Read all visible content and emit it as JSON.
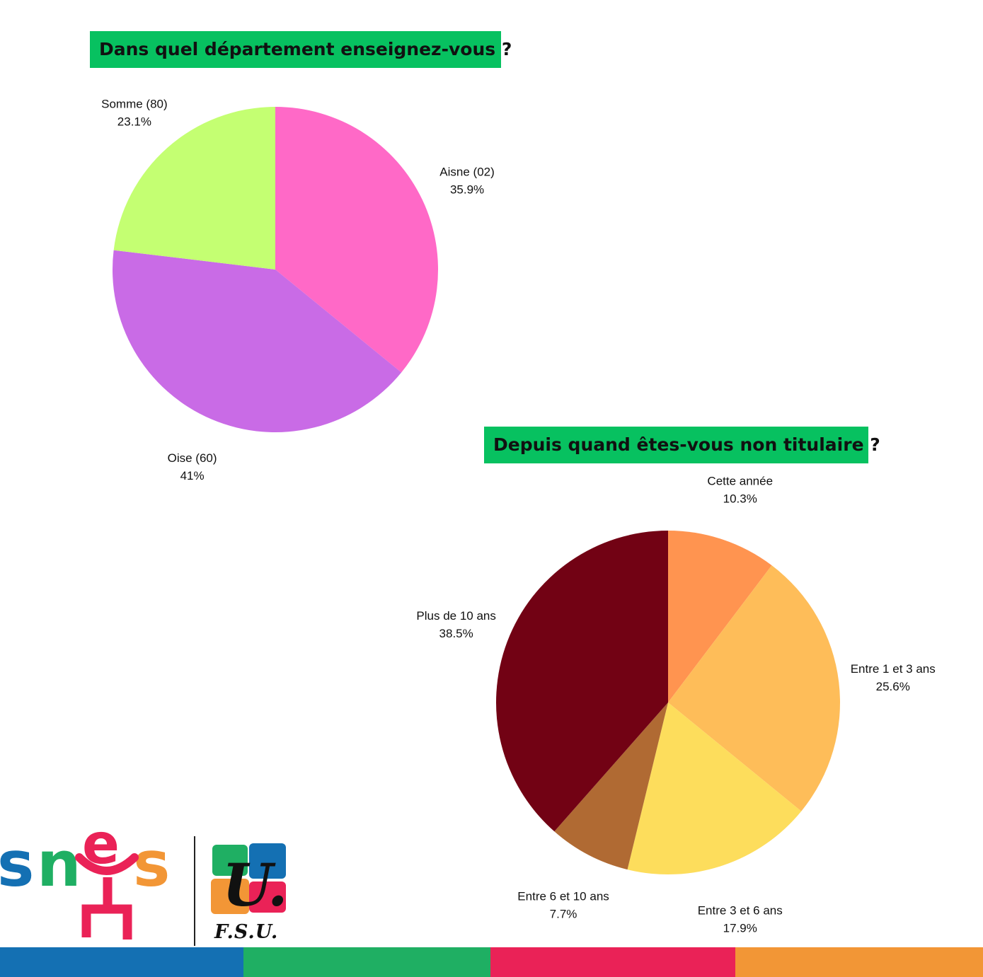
{
  "colors": {
    "title_bg": "#07c160",
    "bar": [
      "#1470b3",
      "#1faf63",
      "#ea2257",
      "#f29636"
    ]
  },
  "logos": {
    "snes": "snes",
    "fsu_letter": "U.",
    "fsu": "F.S.U."
  },
  "chart_data": [
    {
      "type": "pie",
      "title": "Dans quel département enseignez-vous ?",
      "slices": [
        {
          "label": "Aisne (02)",
          "pct_label": "35.9%",
          "value": 35.9,
          "color": "#ff69c7"
        },
        {
          "label": "Oise (60)",
          "pct_label": "41%",
          "value": 41.0,
          "color": "#c96be6"
        },
        {
          "label": "Somme (80)",
          "pct_label": "23.1%",
          "value": 23.1,
          "color": "#c4ff72"
        }
      ]
    },
    {
      "type": "pie",
      "title": "Depuis quand êtes-vous non titulaire ?",
      "slices": [
        {
          "label": "Cette année",
          "pct_label": "10.3%",
          "value": 10.3,
          "color": "#ff9450"
        },
        {
          "label": "Entre 1 et 3 ans",
          "pct_label": "25.6%",
          "value": 25.6,
          "color": "#febd59"
        },
        {
          "label": "Entre 3 et 6 ans",
          "pct_label": "17.9%",
          "value": 17.9,
          "color": "#fddd5c"
        },
        {
          "label": "Entre 6 et 10 ans",
          "pct_label": "7.7%",
          "value": 7.7,
          "color": "#b06a33"
        },
        {
          "label": "Plus de 10 ans",
          "pct_label": "38.5%",
          "value": 38.5,
          "color": "#720214"
        }
      ]
    }
  ]
}
